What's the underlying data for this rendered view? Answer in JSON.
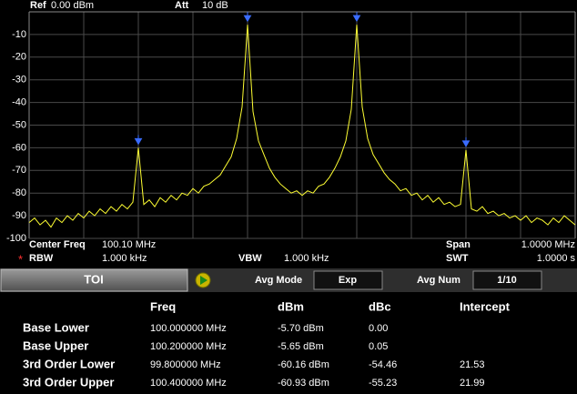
{
  "header": {
    "ref_label": "Ref",
    "ref_value": "0.00 dBm",
    "att_label": "Att",
    "att_value": "10 dB"
  },
  "chart_data": {
    "type": "line",
    "xlim": [
      99.6,
      100.6
    ],
    "ylim": [
      -100,
      0
    ],
    "yticks": [
      -10,
      -20,
      -30,
      -40,
      -50,
      -60,
      -70,
      -80,
      -90,
      -100
    ],
    "grid": true,
    "color": "#ffff33",
    "marker_color": "#3a6cff",
    "x": [
      99.6,
      99.61,
      99.62,
      99.63,
      99.64,
      99.65,
      99.66,
      99.67,
      99.68,
      99.69,
      99.7,
      99.71,
      99.72,
      99.73,
      99.74,
      99.75,
      99.76,
      99.77,
      99.78,
      99.79,
      99.8,
      99.81,
      99.82,
      99.83,
      99.84,
      99.85,
      99.86,
      99.87,
      99.88,
      99.89,
      99.9,
      99.91,
      99.92,
      99.93,
      99.94,
      99.95,
      99.96,
      99.97,
      99.98,
      99.99,
      100.0,
      100.01,
      100.02,
      100.03,
      100.04,
      100.05,
      100.06,
      100.07,
      100.08,
      100.09,
      100.1,
      100.11,
      100.12,
      100.13,
      100.14,
      100.15,
      100.16,
      100.17,
      100.18,
      100.19,
      100.2,
      100.21,
      100.22,
      100.23,
      100.24,
      100.25,
      100.26,
      100.27,
      100.28,
      100.29,
      100.3,
      100.31,
      100.32,
      100.33,
      100.34,
      100.35,
      100.36,
      100.37,
      100.38,
      100.39,
      100.4,
      100.41,
      100.42,
      100.43,
      100.44,
      100.45,
      100.46,
      100.47,
      100.48,
      100.49,
      100.5,
      100.51,
      100.52,
      100.53,
      100.54,
      100.55,
      100.56,
      100.57,
      100.58,
      100.59,
      100.6
    ],
    "values": [
      -93,
      -91,
      -94,
      -92,
      -95,
      -91,
      -93,
      -90,
      -92,
      -89,
      -91,
      -88,
      -90,
      -87,
      -89,
      -86,
      -88,
      -85,
      -87,
      -84,
      -60,
      -85,
      -83,
      -86,
      -82,
      -84,
      -81,
      -83,
      -80,
      -81,
      -78,
      -80,
      -77,
      -76,
      -74,
      -72,
      -68,
      -64,
      -56,
      -42,
      -5.7,
      -44,
      -57,
      -63,
      -69,
      -73,
      -76,
      -78,
      -80,
      -79,
      -81,
      -79,
      -80,
      -77,
      -76,
      -73,
      -69,
      -64,
      -57,
      -43,
      -5.65,
      -42,
      -56,
      -63,
      -67,
      -71,
      -74,
      -76,
      -79,
      -78,
      -81,
      -80,
      -83,
      -81,
      -84,
      -82,
      -85,
      -84,
      -86,
      -85,
      -61,
      -87,
      -88,
      -86,
      -89,
      -88,
      -90,
      -89,
      -91,
      -90,
      -92,
      -90,
      -93,
      -91,
      -92,
      -94,
      -91,
      -93,
      -90,
      -92,
      -94
    ],
    "markers": [
      {
        "x": 99.8,
        "y": -60
      },
      {
        "x": 100.0,
        "y": -5.7
      },
      {
        "x": 100.2,
        "y": -5.65
      },
      {
        "x": 100.4,
        "y": -61
      }
    ]
  },
  "footer": {
    "center_label": "Center Freq",
    "center_value": "100.10 MHz",
    "span_label": "Span",
    "span_value": "1.0000 MHz",
    "rbw_star": "*",
    "rbw_label": "RBW",
    "rbw_value": "1.000 kHz",
    "vbw_label": "VBW",
    "vbw_value": "1.000 kHz",
    "swt_label": "SWT",
    "swt_value": "1.0000 s"
  },
  "panel": {
    "title": "TOI",
    "avg_mode_label": "Avg Mode",
    "avg_mode_value": "Exp",
    "avg_num_label": "Avg Num",
    "avg_num_value": "1/10"
  },
  "table": {
    "columns": [
      "Freq",
      "dBm",
      "dBc",
      "Intercept"
    ],
    "rows": [
      [
        "Base Lower",
        "100.000000 MHz",
        "-5.70 dBm",
        "0.00",
        null
      ],
      [
        "Base Upper",
        "100.200000 MHz",
        "-5.65 dBm",
        "0.05",
        null
      ],
      [
        "3rd Order Lower",
        "99.800000 MHz",
        "-60.16 dBm",
        "-54.46",
        "21.53"
      ],
      [
        "3rd Order Upper",
        "100.400000 MHz",
        "-60.93 dBm",
        "-55.23",
        "21.99"
      ]
    ]
  }
}
